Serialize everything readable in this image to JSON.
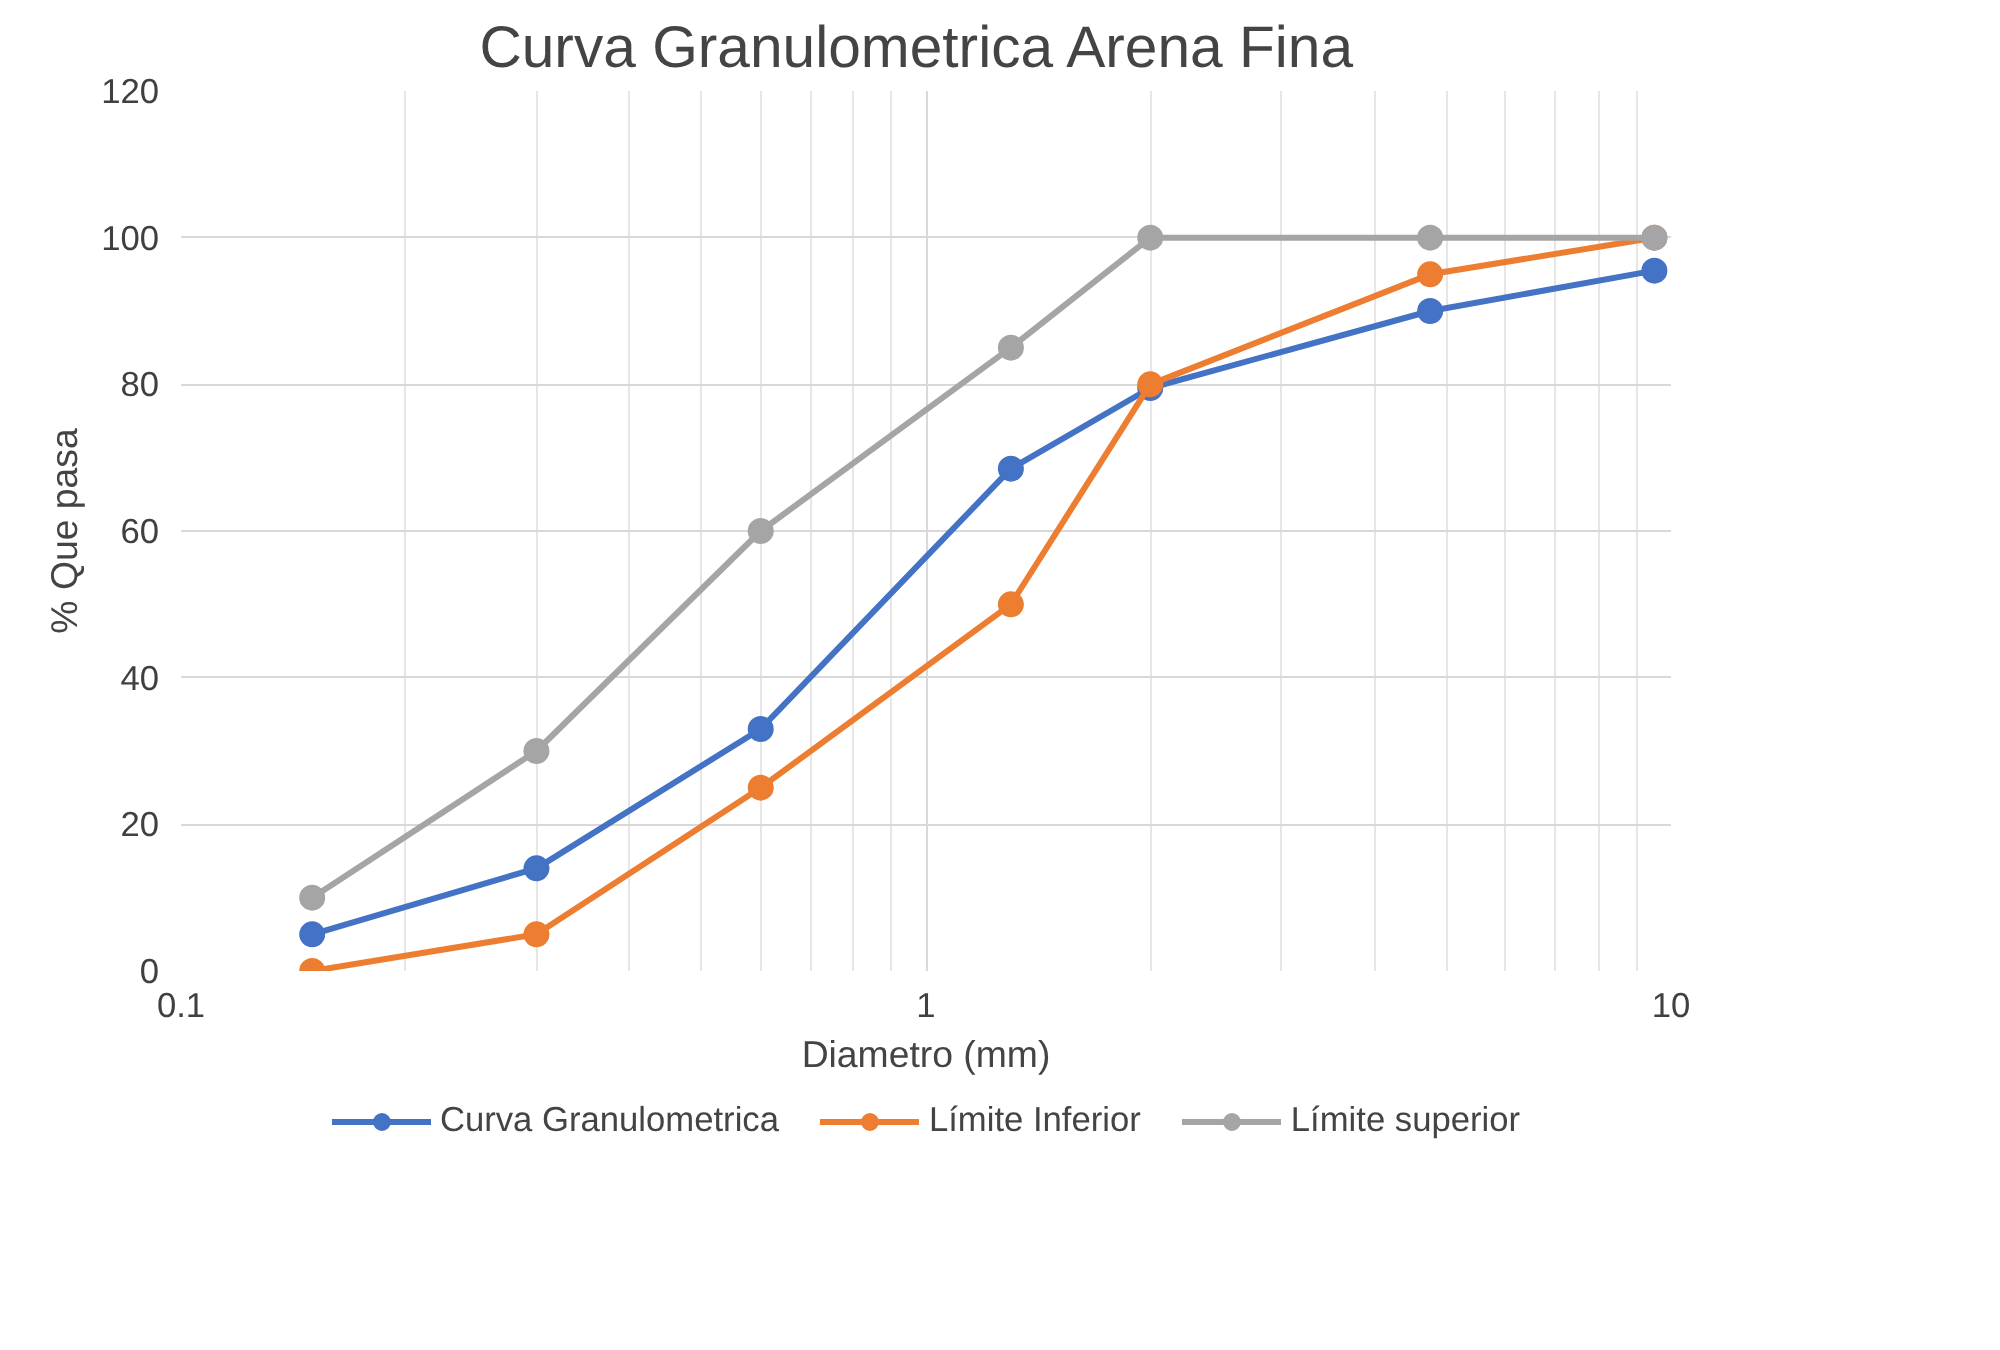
{
  "chart_data": {
    "type": "line",
    "title": "Curva  Granulometrica Arena Fina",
    "xlabel": "Diametro (mm)",
    "ylabel": "% Que pasa",
    "x": [
      0.15,
      0.3,
      0.6,
      1.3,
      2.0,
      4.75,
      9.5
    ],
    "series": [
      {
        "name": "Curva Granulometrica",
        "color": "#4472c4",
        "values": [
          5,
          14,
          33,
          68.5,
          79.5,
          90,
          95.5
        ]
      },
      {
        "name": "Límite Inferior",
        "color": "#ed7d31",
        "values": [
          0,
          5,
          25,
          50,
          80,
          95,
          100
        ]
      },
      {
        "name": "Límite superior",
        "color": "#a5a5a5",
        "values": [
          10,
          30,
          60,
          85,
          100,
          100,
          100
        ]
      }
    ],
    "log": "x",
    "xlim": [
      0.1,
      10
    ],
    "xticks": [
      0.1,
      1,
      10
    ],
    "ylim": [
      0,
      120
    ],
    "yticks": [
      0,
      20,
      40,
      60,
      80,
      100,
      120
    ],
    "grid": true,
    "legend": "bottom",
    "marker": "circle",
    "line_style": "solid"
  }
}
